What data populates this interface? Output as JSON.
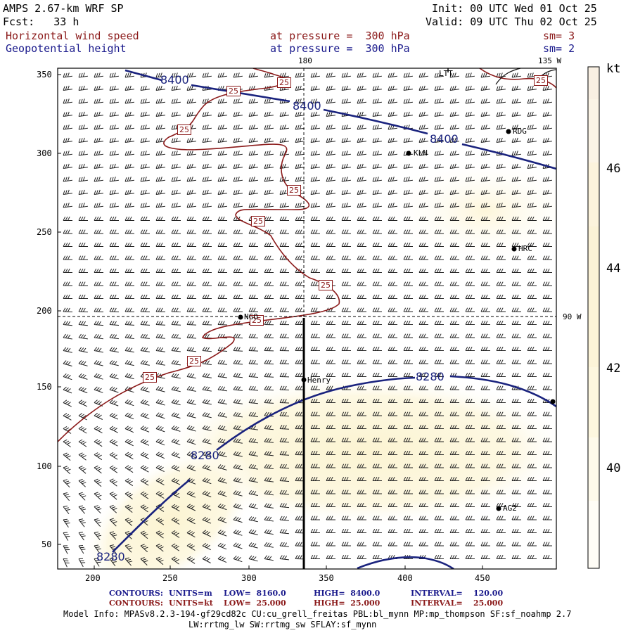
{
  "header": {
    "model": "AMPS 2.67-km WRF SP",
    "init": "Init: 00 UTC Wed 01 Oct 25",
    "forecast": "Fcst:   33 h",
    "valid": "Valid: 09 UTC Thu 02 Oct 25",
    "field1": "Horizontal wind speed",
    "field1_level": "at pressure =  300 hPa",
    "field1_sm": "sm= 3",
    "field2": "Geopotential height",
    "field2_level": "at pressure =  300 hPa",
    "field2_sm": "sm= 2"
  },
  "map": {
    "lon_labels": [
      "180",
      "135 W",
      "90 W"
    ],
    "y_ticks": [
      "350",
      "300",
      "250",
      "200",
      "150",
      "100",
      "50"
    ],
    "x_ticks": [
      "200",
      "250",
      "300",
      "350",
      "400",
      "450"
    ],
    "stations": [
      "LTT",
      "RDG",
      "KLN",
      "HRC",
      "NGO",
      "Henry",
      "AG2"
    ],
    "height_contour_labels": [
      "8400",
      "8400",
      "8400",
      "8280",
      "8280",
      "8280"
    ],
    "speed_contour_label": "25"
  },
  "colorbar": {
    "unit": "kt",
    "labels": [
      "46",
      "44",
      "42",
      "40"
    ],
    "colors": [
      "#fdfaf1",
      "#fbf1de",
      "#fbf3d8",
      "#fcf6d6",
      "#fdf8dc",
      "#fefbe6",
      "#fffdf2",
      "#ffffff"
    ]
  },
  "footer": {
    "row1": {
      "label": "CONTOURS:",
      "units": "UNITS=m",
      "low": "LOW=  8160.0",
      "high": "HIGH=  8400.0",
      "interval": "INTERVAL=    120.00"
    },
    "row2": {
      "label": "CONTOURS:",
      "units": "UNITS=kt",
      "low": "LOW=  25.000",
      "high": "HIGH=  25.000",
      "interval": "INTERVAL=    25.000"
    },
    "model_info": "Model Info: MPASv8.2.3-194-gf29cd82c CU:cu_grell_freitas PBL:bl_mynn MP:mp_thompson SF:sf_noahmp 2.7",
    "model_info2": "LW:rrtmg_lw SW:rrtmg_sw SFLAY:sf_mynn"
  }
}
